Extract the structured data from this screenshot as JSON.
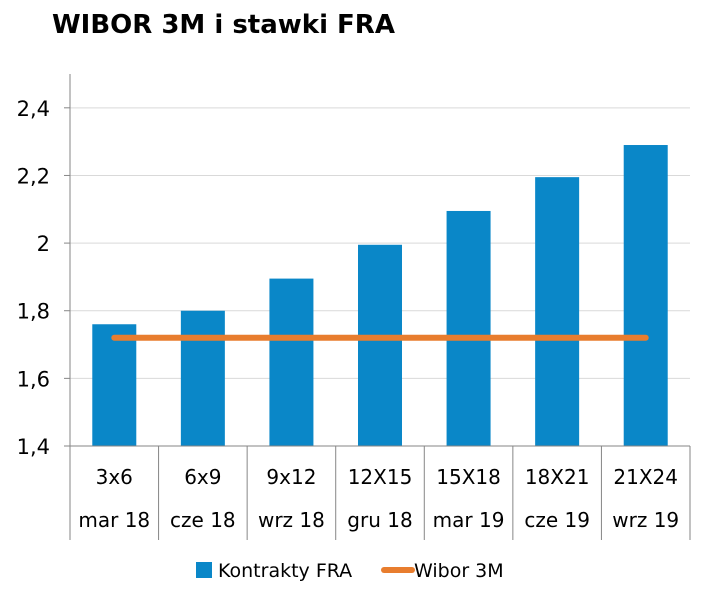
{
  "chart_data": {
    "type": "bar",
    "title": "WIBOR 3M i stawki FRA",
    "categories": [
      "3x6",
      "6x9",
      "9x12",
      "12X15",
      "15X18",
      "18X21",
      "21X24"
    ],
    "sub_categories": [
      "mar 18",
      "cze 18",
      "wrz 18",
      "gru 18",
      "mar 19",
      "cze 19",
      "wrz 19"
    ],
    "series": [
      {
        "name": "Kontrakty FRA",
        "kind": "bar",
        "color": "#0a87c8",
        "values": [
          1.76,
          1.8,
          1.895,
          1.995,
          2.095,
          2.195,
          2.29
        ]
      },
      {
        "name": "Wibor 3M",
        "kind": "line",
        "color": "#e87d2e",
        "values": [
          1.72,
          1.72,
          1.72,
          1.72,
          1.72,
          1.72,
          1.72
        ]
      }
    ],
    "ylim": [
      1.4,
      2.5
    ],
    "yticks": [
      {
        "value": 1.4,
        "label": "1,4"
      },
      {
        "value": 1.6,
        "label": "1,6"
      },
      {
        "value": 1.8,
        "label": "1,8"
      },
      {
        "value": 2.0,
        "label": "2"
      },
      {
        "value": 2.2,
        "label": "2,2"
      },
      {
        "value": 2.4,
        "label": "2,4"
      }
    ],
    "grid": true,
    "legend_position": "bottom"
  }
}
